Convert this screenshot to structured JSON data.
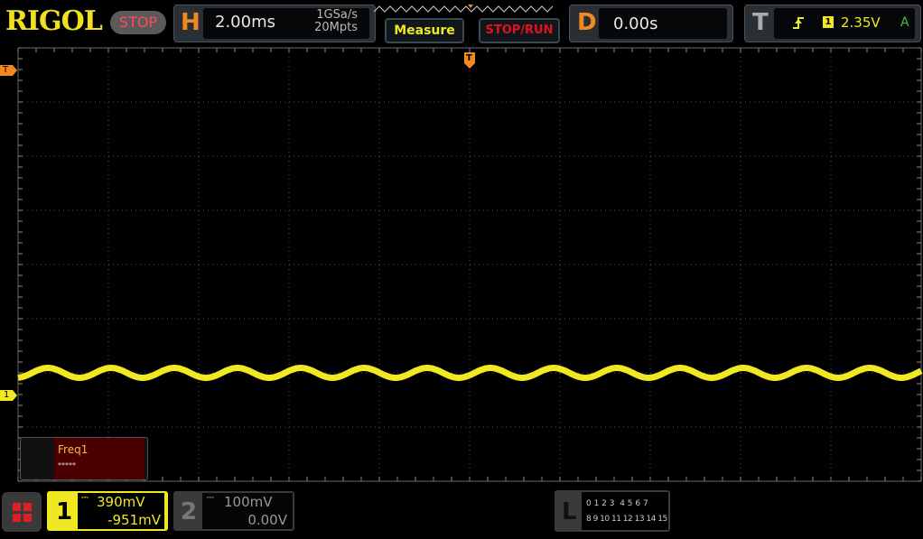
{
  "header": {
    "brand": "RIGOL",
    "run_state": "STOP",
    "horizontal": {
      "label": "H",
      "timebase": "2.00ms",
      "sample_rate": "1GSa/s",
      "memory_depth": "20Mpts"
    },
    "measure_button": "Measure",
    "stop_run_button": "STOP/RUN",
    "delay": {
      "label": "D",
      "value": "0.00s"
    },
    "trigger": {
      "label": "T",
      "edge_icon": "rising-edge-icon",
      "source": "1",
      "level": "2.35V",
      "mode": "A"
    }
  },
  "screen": {
    "trigger_marker": "T",
    "channel1_marker": "1",
    "waveform_color": "#f0e820",
    "measurement": {
      "name": "Freq1",
      "value": "*****"
    }
  },
  "footer": {
    "channel1": {
      "number": "1",
      "coupling_icon": "dc-coupling-icon",
      "scale": "390mV",
      "offset": "-951mV"
    },
    "channel2": {
      "number": "2",
      "coupling_icon": "dc-coupling-icon",
      "scale": "100mV",
      "offset": "0.00V"
    },
    "logic": {
      "label": "L",
      "row1": "0 1 2 3  4 5 6 7",
      "row2": "8 9 10 11 12 13 14 15"
    }
  }
}
